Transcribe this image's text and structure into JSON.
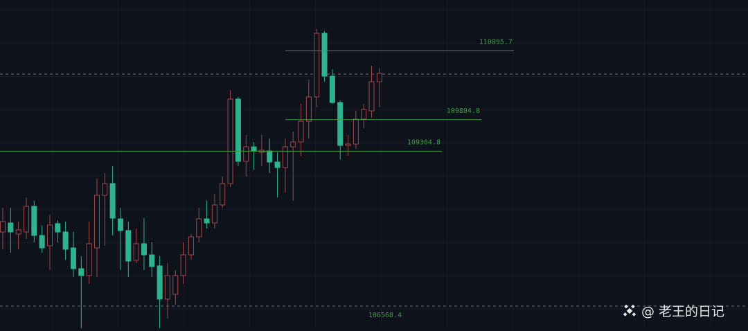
{
  "chart_data": {
    "type": "candlestick",
    "ylim": [
      106500,
      111700
    ],
    "up_color": "#a3474b",
    "down_color": "#2fb38f",
    "level_color": "#3f9a45",
    "open": [
      108025,
      108168,
      107992,
      108025,
      108431,
      107970,
      107806,
      108157,
      108025,
      107773,
      107444,
      107334,
      107773,
      108606,
      108793,
      108233,
      108047,
      107575,
      107839,
      107663,
      107488,
      106961,
      107038,
      107334,
      107663,
      107948,
      108233,
      108168,
      108453,
      108793,
      110131,
      109144,
      109374,
      109287,
      109309,
      109133,
      109045,
      109374,
      109451,
      109780,
      110164,
      111173,
      110493,
      110076,
      109396,
      109418,
      109813,
      109945,
      110406
    ],
    "high": [
      108409,
      108409,
      108190,
      108574,
      108519,
      108135,
      108299,
      108211,
      108190,
      108029,
      107641,
      108190,
      108870,
      108958,
      109067,
      108409,
      108190,
      108080,
      108244,
      107862,
      107641,
      107532,
      107422,
      107862,
      107996,
      108409,
      108519,
      108628,
      108903,
      110274,
      110164,
      109561,
      109451,
      109561,
      109506,
      109287,
      109506,
      109616,
      110055,
      110438,
      111239,
      111206,
      110603,
      110109,
      109561,
      109945,
      110055,
      110658,
      110625
    ],
    "low": [
      107751,
      107696,
      107751,
      107915,
      107861,
      107696,
      107422,
      107861,
      107586,
      107312,
      106500,
      107202,
      107312,
      107806,
      107970,
      107422,
      107312,
      107532,
      107422,
      107312,
      106500,
      106654,
      106873,
      107202,
      107586,
      107861,
      108080,
      108080,
      108409,
      108738,
      109067,
      108903,
      109012,
      109067,
      108958,
      108574,
      108650,
      108519,
      109232,
      109506,
      110000,
      110406,
      110055,
      109177,
      109232,
      109341,
      109671,
      109835,
      110000
    ],
    "close": [
      108190,
      108025,
      108058,
      108431,
      107970,
      107773,
      108135,
      108025,
      107751,
      107444,
      107334,
      107839,
      108606,
      108793,
      108244,
      108047,
      107564,
      107839,
      107663,
      107477,
      106961,
      107334,
      107334,
      107663,
      107948,
      108233,
      108168,
      108453,
      108793,
      110131,
      109144,
      109374,
      109309,
      109320,
      109133,
      109045,
      109374,
      109451,
      109780,
      110164,
      111173,
      110493,
      110076,
      109396,
      109418,
      109813,
      109967,
      110406,
      110537
    ],
    "levels": [
      {
        "value": 110895.7,
        "label": "110895.7"
      },
      {
        "value": 109804.8,
        "label": "109804.8"
      },
      {
        "value": 109304.8,
        "label": "109304.8"
      },
      {
        "value": 106568.4,
        "label": "106568.4"
      }
    ],
    "watermark": "@ 老王的日记"
  }
}
